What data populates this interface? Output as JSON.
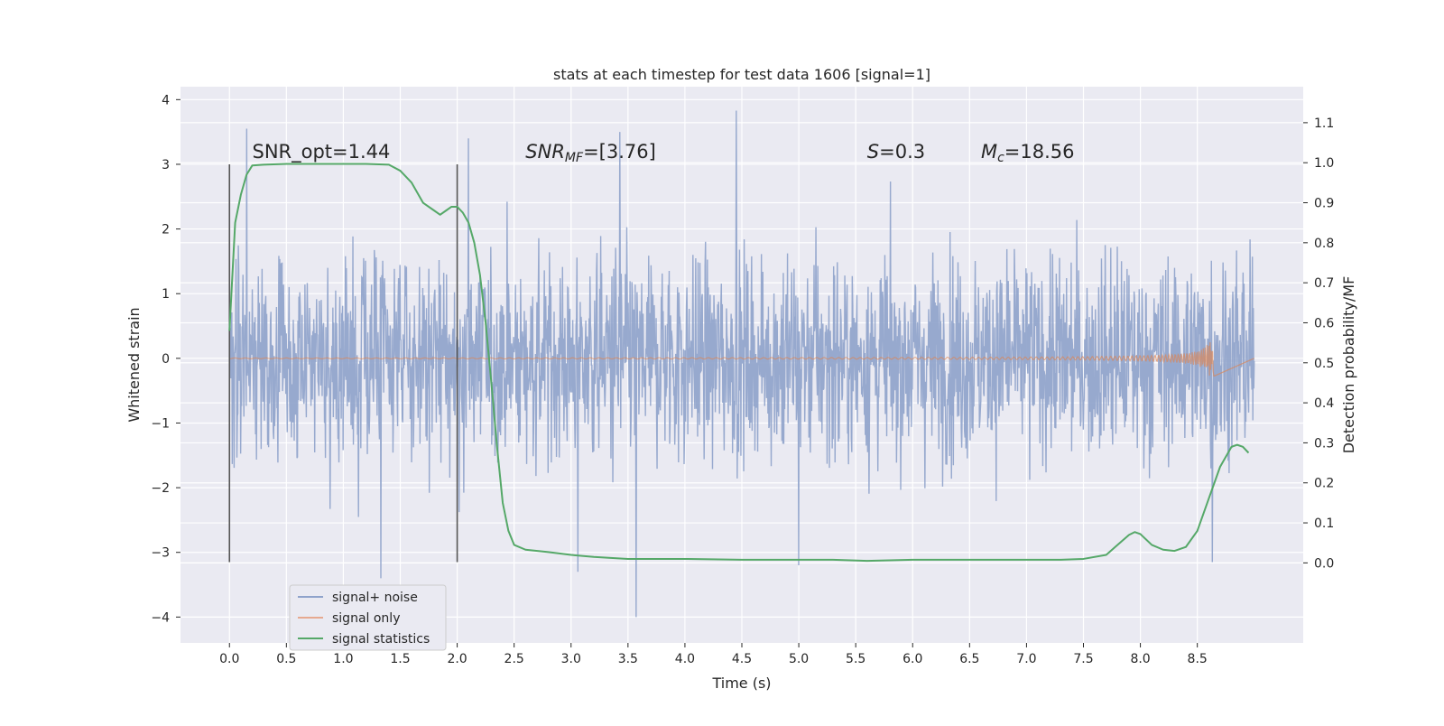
{
  "chart_data": {
    "type": "line",
    "title": "stats at each timestep for test data 1606 [signal=1]",
    "xlabel": "Time (s)",
    "ylabel": "Whitened strain",
    "ylabel_right": "Detection probability/MF",
    "xlim": [
      -0.43,
      9.43
    ],
    "ylim": [
      -4.4,
      4.2
    ],
    "ylim_right": [
      -0.2,
      1.19
    ],
    "x_ticks": [
      "0.0",
      "0.5",
      "1.0",
      "1.5",
      "2.0",
      "2.5",
      "3.0",
      "3.5",
      "4.0",
      "4.5",
      "5.0",
      "5.5",
      "6.0",
      "6.5",
      "7.0",
      "7.5",
      "8.0",
      "8.5"
    ],
    "y_ticks": [
      "4",
      "3",
      "2",
      "1",
      "0",
      "−1",
      "−2",
      "−3",
      "−4"
    ],
    "y_ticks_right": [
      "1.1",
      "1.0",
      "0.9",
      "0.8",
      "0.7",
      "0.6",
      "0.5",
      "0.4",
      "0.3",
      "0.2",
      "0.1",
      "0.0"
    ],
    "grid": true,
    "legend_position": "lower-left",
    "colors": {
      "signal_noise": "#8fa3cb",
      "signal_only": "#dd8452",
      "signal_statistics": "#55a868",
      "marker_line": "#555555",
      "background": "#eaeaf2"
    },
    "series": [
      {
        "name": "signal+ noise",
        "kind": "noise_trace",
        "x_range": [
          0.0,
          9.0
        ],
        "core_amplitude": 1.2,
        "peaks": [
          {
            "x": 0.15,
            "y": 3.55
          },
          {
            "x": 1.33,
            "y": -3.4
          },
          {
            "x": 2.1,
            "y": 3.4
          },
          {
            "x": 3.06,
            "y": -3.3
          },
          {
            "x": 3.43,
            "y": 3.5
          },
          {
            "x": 3.57,
            "y": -4.0
          },
          {
            "x": 4.45,
            "y": 3.83
          },
          {
            "x": 5.0,
            "y": -3.2
          },
          {
            "x": 8.63,
            "y": -3.15
          }
        ]
      },
      {
        "name": "signal only",
        "kind": "chirp",
        "x_range": [
          0.0,
          8.65
        ],
        "peak_x": 8.63,
        "peak_amplitude": 0.28
      },
      {
        "name": "signal statistics",
        "kind": "line",
        "x": [
          0.0,
          0.05,
          0.1,
          0.15,
          0.2,
          0.3,
          0.5,
          0.8,
          1.0,
          1.2,
          1.4,
          1.5,
          1.6,
          1.7,
          1.8,
          1.85,
          1.9,
          1.95,
          2.0,
          2.05,
          2.1,
          2.15,
          2.2,
          2.25,
          2.3,
          2.35,
          2.4,
          2.45,
          2.5,
          2.6,
          2.8,
          3.0,
          3.2,
          3.5,
          4.0,
          4.5,
          4.8,
          5.0,
          5.3,
          5.6,
          6.0,
          6.5,
          7.0,
          7.3,
          7.5,
          7.7,
          7.8,
          7.9,
          7.95,
          8.0,
          8.1,
          8.2,
          8.3,
          8.4,
          8.5,
          8.6,
          8.7,
          8.8,
          8.85,
          8.9,
          8.95
        ],
        "y": [
          0.58,
          0.85,
          0.92,
          0.97,
          0.993,
          0.995,
          0.997,
          0.997,
          0.997,
          0.997,
          0.995,
          0.98,
          0.95,
          0.9,
          0.88,
          0.87,
          0.88,
          0.89,
          0.89,
          0.875,
          0.85,
          0.8,
          0.72,
          0.6,
          0.45,
          0.29,
          0.15,
          0.08,
          0.045,
          0.033,
          0.027,
          0.02,
          0.015,
          0.01,
          0.01,
          0.008,
          0.008,
          0.008,
          0.008,
          0.005,
          0.008,
          0.008,
          0.008,
          0.008,
          0.01,
          0.02,
          0.045,
          0.07,
          0.077,
          0.072,
          0.045,
          0.033,
          0.03,
          0.04,
          0.08,
          0.16,
          0.24,
          0.29,
          0.295,
          0.29,
          0.275
        ],
        "axis": "right"
      }
    ],
    "vertical_lines": [
      {
        "x": 0.0,
        "y_range": [
          -3.15,
          3.0
        ]
      },
      {
        "x": 2.0,
        "y_range": [
          -3.15,
          3.0
        ]
      }
    ],
    "annotations": [
      {
        "text": "SNR_opt=1.44",
        "x": 0.2,
        "y": 3.1
      },
      {
        "text": "SNR",
        "sub": "MF",
        "rest": "=[3.76]",
        "italic": true,
        "x": 2.6,
        "y": 3.1
      },
      {
        "text": "S",
        "rest": "=0.3",
        "italic": true,
        "x": 5.6,
        "y": 3.1
      },
      {
        "text": "M",
        "sub": "c",
        "rest": "=18.56",
        "italic": true,
        "x": 6.6,
        "y": 3.1
      }
    ]
  }
}
